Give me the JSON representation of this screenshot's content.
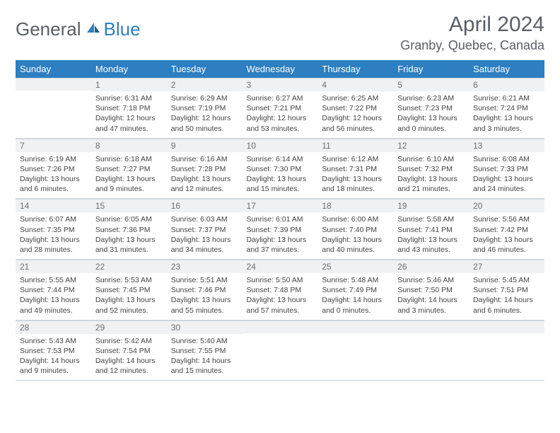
{
  "logo": {
    "part1": "General",
    "part2": "Blue"
  },
  "title": "April 2024",
  "location": "Granby, Quebec, Canada",
  "colors": {
    "header_bg": "#2d7fc1",
    "header_text": "#ffffff",
    "daynum_bg": "#f0f1f2",
    "text": "#444444",
    "title_color": "#5a5f66"
  },
  "weekdays": [
    "Sunday",
    "Monday",
    "Tuesday",
    "Wednesday",
    "Thursday",
    "Friday",
    "Saturday"
  ],
  "weeks": [
    [
      null,
      {
        "n": "1",
        "sr": "Sunrise: 6:31 AM",
        "ss": "Sunset: 7:18 PM",
        "d1": "Daylight: 12 hours",
        "d2": "and 47 minutes."
      },
      {
        "n": "2",
        "sr": "Sunrise: 6:29 AM",
        "ss": "Sunset: 7:19 PM",
        "d1": "Daylight: 12 hours",
        "d2": "and 50 minutes."
      },
      {
        "n": "3",
        "sr": "Sunrise: 6:27 AM",
        "ss": "Sunset: 7:21 PM",
        "d1": "Daylight: 12 hours",
        "d2": "and 53 minutes."
      },
      {
        "n": "4",
        "sr": "Sunrise: 6:25 AM",
        "ss": "Sunset: 7:22 PM",
        "d1": "Daylight: 12 hours",
        "d2": "and 56 minutes."
      },
      {
        "n": "5",
        "sr": "Sunrise: 6:23 AM",
        "ss": "Sunset: 7:23 PM",
        "d1": "Daylight: 13 hours",
        "d2": "and 0 minutes."
      },
      {
        "n": "6",
        "sr": "Sunrise: 6:21 AM",
        "ss": "Sunset: 7:24 PM",
        "d1": "Daylight: 13 hours",
        "d2": "and 3 minutes."
      }
    ],
    [
      {
        "n": "7",
        "sr": "Sunrise: 6:19 AM",
        "ss": "Sunset: 7:26 PM",
        "d1": "Daylight: 13 hours",
        "d2": "and 6 minutes."
      },
      {
        "n": "8",
        "sr": "Sunrise: 6:18 AM",
        "ss": "Sunset: 7:27 PM",
        "d1": "Daylight: 13 hours",
        "d2": "and 9 minutes."
      },
      {
        "n": "9",
        "sr": "Sunrise: 6:16 AM",
        "ss": "Sunset: 7:28 PM",
        "d1": "Daylight: 13 hours",
        "d2": "and 12 minutes."
      },
      {
        "n": "10",
        "sr": "Sunrise: 6:14 AM",
        "ss": "Sunset: 7:30 PM",
        "d1": "Daylight: 13 hours",
        "d2": "and 15 minutes."
      },
      {
        "n": "11",
        "sr": "Sunrise: 6:12 AM",
        "ss": "Sunset: 7:31 PM",
        "d1": "Daylight: 13 hours",
        "d2": "and 18 minutes."
      },
      {
        "n": "12",
        "sr": "Sunrise: 6:10 AM",
        "ss": "Sunset: 7:32 PM",
        "d1": "Daylight: 13 hours",
        "d2": "and 21 minutes."
      },
      {
        "n": "13",
        "sr": "Sunrise: 6:08 AM",
        "ss": "Sunset: 7:33 PM",
        "d1": "Daylight: 13 hours",
        "d2": "and 24 minutes."
      }
    ],
    [
      {
        "n": "14",
        "sr": "Sunrise: 6:07 AM",
        "ss": "Sunset: 7:35 PM",
        "d1": "Daylight: 13 hours",
        "d2": "and 28 minutes."
      },
      {
        "n": "15",
        "sr": "Sunrise: 6:05 AM",
        "ss": "Sunset: 7:36 PM",
        "d1": "Daylight: 13 hours",
        "d2": "and 31 minutes."
      },
      {
        "n": "16",
        "sr": "Sunrise: 6:03 AM",
        "ss": "Sunset: 7:37 PM",
        "d1": "Daylight: 13 hours",
        "d2": "and 34 minutes."
      },
      {
        "n": "17",
        "sr": "Sunrise: 6:01 AM",
        "ss": "Sunset: 7:39 PM",
        "d1": "Daylight: 13 hours",
        "d2": "and 37 minutes."
      },
      {
        "n": "18",
        "sr": "Sunrise: 6:00 AM",
        "ss": "Sunset: 7:40 PM",
        "d1": "Daylight: 13 hours",
        "d2": "and 40 minutes."
      },
      {
        "n": "19",
        "sr": "Sunrise: 5:58 AM",
        "ss": "Sunset: 7:41 PM",
        "d1": "Daylight: 13 hours",
        "d2": "and 43 minutes."
      },
      {
        "n": "20",
        "sr": "Sunrise: 5:56 AM",
        "ss": "Sunset: 7:42 PM",
        "d1": "Daylight: 13 hours",
        "d2": "and 46 minutes."
      }
    ],
    [
      {
        "n": "21",
        "sr": "Sunrise: 5:55 AM",
        "ss": "Sunset: 7:44 PM",
        "d1": "Daylight: 13 hours",
        "d2": "and 49 minutes."
      },
      {
        "n": "22",
        "sr": "Sunrise: 5:53 AM",
        "ss": "Sunset: 7:45 PM",
        "d1": "Daylight: 13 hours",
        "d2": "and 52 minutes."
      },
      {
        "n": "23",
        "sr": "Sunrise: 5:51 AM",
        "ss": "Sunset: 7:46 PM",
        "d1": "Daylight: 13 hours",
        "d2": "and 55 minutes."
      },
      {
        "n": "24",
        "sr": "Sunrise: 5:50 AM",
        "ss": "Sunset: 7:48 PM",
        "d1": "Daylight: 13 hours",
        "d2": "and 57 minutes."
      },
      {
        "n": "25",
        "sr": "Sunrise: 5:48 AM",
        "ss": "Sunset: 7:49 PM",
        "d1": "Daylight: 14 hours",
        "d2": "and 0 minutes."
      },
      {
        "n": "26",
        "sr": "Sunrise: 5:46 AM",
        "ss": "Sunset: 7:50 PM",
        "d1": "Daylight: 14 hours",
        "d2": "and 3 minutes."
      },
      {
        "n": "27",
        "sr": "Sunrise: 5:45 AM",
        "ss": "Sunset: 7:51 PM",
        "d1": "Daylight: 14 hours",
        "d2": "and 6 minutes."
      }
    ],
    [
      {
        "n": "28",
        "sr": "Sunrise: 5:43 AM",
        "ss": "Sunset: 7:53 PM",
        "d1": "Daylight: 14 hours",
        "d2": "and 9 minutes."
      },
      {
        "n": "29",
        "sr": "Sunrise: 5:42 AM",
        "ss": "Sunset: 7:54 PM",
        "d1": "Daylight: 14 hours",
        "d2": "and 12 minutes."
      },
      {
        "n": "30",
        "sr": "Sunrise: 5:40 AM",
        "ss": "Sunset: 7:55 PM",
        "d1": "Daylight: 14 hours",
        "d2": "and 15 minutes."
      },
      null,
      null,
      null,
      null
    ]
  ]
}
